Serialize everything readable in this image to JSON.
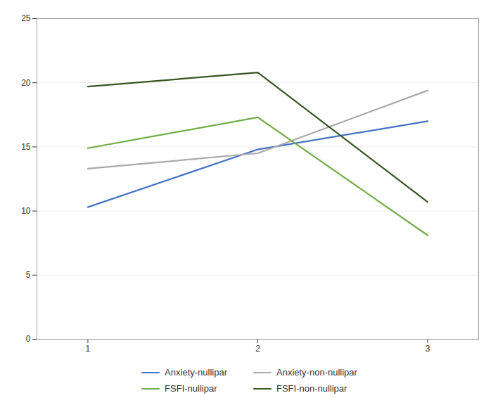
{
  "chart_data": {
    "type": "line",
    "x": [
      1,
      2,
      3
    ],
    "series": [
      {
        "name": "Anxiety-nullipar",
        "color": "#4472C4",
        "values": [
          10.3,
          14.8,
          17.0
        ]
      },
      {
        "name": "Anxiety-non-nullipar",
        "color": "#A9A9A9",
        "values": [
          13.3,
          14.5,
          19.4
        ]
      },
      {
        "name": "FSFI-nullipar",
        "color": "#70AD47",
        "values": [
          14.9,
          17.3,
          8.1
        ]
      },
      {
        "name": "FSFI-non-nullipar",
        "color": "#375623",
        "values": [
          19.7,
          20.8,
          10.7
        ]
      }
    ],
    "xlim": [
      0.7,
      3.3
    ],
    "xticks": [
      1,
      2,
      3
    ],
    "ylim": [
      0,
      25
    ],
    "yticks": [
      0,
      5,
      10,
      15,
      20,
      25
    ],
    "grid": true,
    "legend": "bottom"
  }
}
